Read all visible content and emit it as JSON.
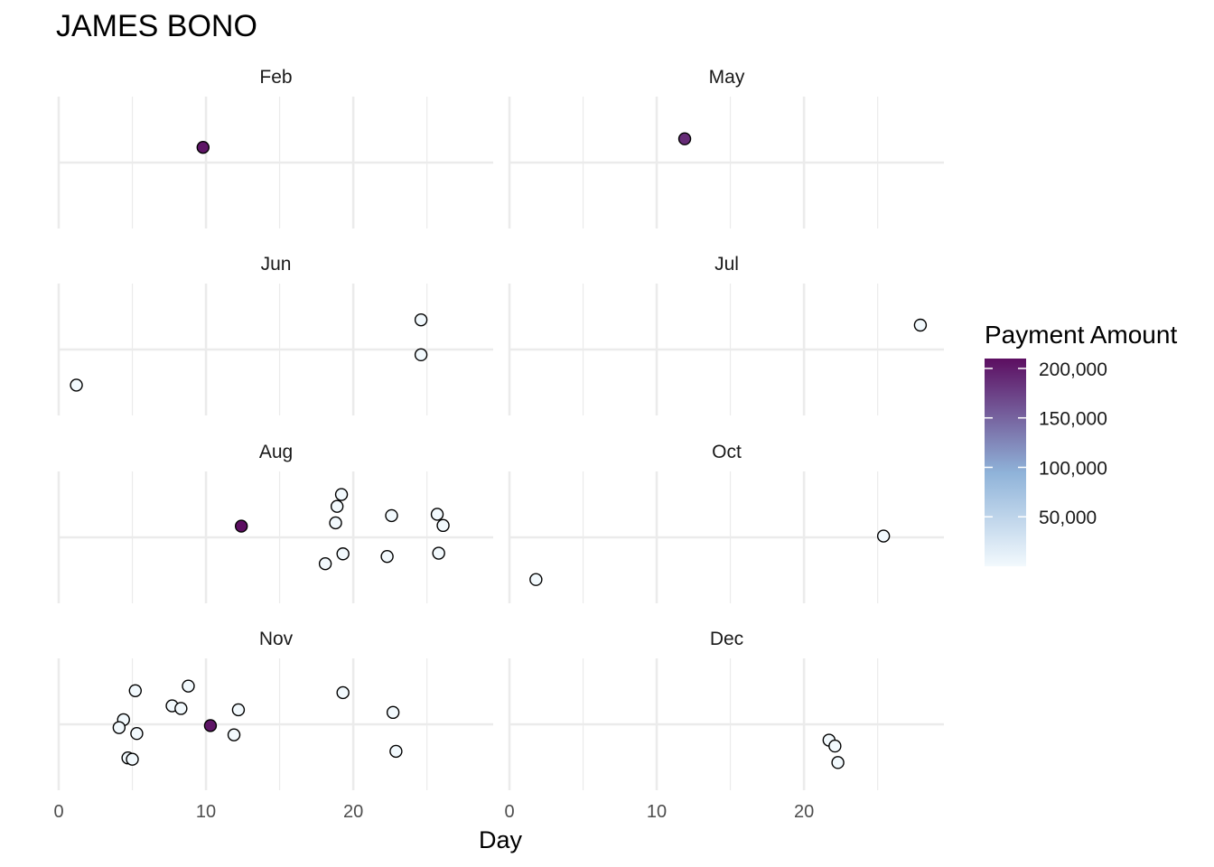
{
  "chart_data": {
    "type": "scatter",
    "title": "JAMES BONO",
    "xlabel": "Day",
    "ylabel": "",
    "xlim": [
      0,
      29.5
    ],
    "x_ticks": [
      0,
      10,
      20
    ],
    "x_tick_labels": [
      "0",
      "10",
      "20"
    ],
    "ylim": [
      -1,
      1
    ],
    "grid": true,
    "facets": [
      "Feb",
      "May",
      "Jun",
      "Jul",
      "Aug",
      "Oct",
      "Nov",
      "Dec"
    ],
    "colors": {
      "low": "#f2f9fd",
      "mid": "#8fb3d9",
      "high": "#5c0e61",
      "point_outline": "#000000",
      "grid": "#ebebeb"
    },
    "legend": {
      "title": "Payment Amount",
      "position": "right",
      "min": 0,
      "max": 210000,
      "breaks": [
        200000,
        150000,
        100000,
        50000
      ],
      "break_labels": [
        "200,000",
        "150,000",
        "100,000",
        "50,000"
      ]
    },
    "points": {
      "Feb": [
        {
          "x": 9.8,
          "y": 0.23,
          "amount": 205000
        }
      ],
      "May": [
        {
          "x": 11.9,
          "y": 0.36,
          "amount": 190000
        }
      ],
      "Jun": [
        {
          "x": 1.2,
          "y": -0.54,
          "amount": 300
        },
        {
          "x": 24.6,
          "y": 0.45,
          "amount": 300
        },
        {
          "x": 24.6,
          "y": -0.08,
          "amount": 300
        }
      ],
      "Jul": [
        {
          "x": 27.9,
          "y": 0.37,
          "amount": 300
        }
      ],
      "Aug": [
        {
          "x": 12.4,
          "y": 0.17,
          "amount": 210000
        },
        {
          "x": 19.2,
          "y": 0.65,
          "amount": 300
        },
        {
          "x": 18.9,
          "y": 0.47,
          "amount": 300
        },
        {
          "x": 18.8,
          "y": 0.22,
          "amount": 300
        },
        {
          "x": 22.6,
          "y": 0.33,
          "amount": 300
        },
        {
          "x": 25.7,
          "y": 0.35,
          "amount": 300
        },
        {
          "x": 26.1,
          "y": 0.18,
          "amount": 300
        },
        {
          "x": 19.3,
          "y": -0.25,
          "amount": 300
        },
        {
          "x": 18.1,
          "y": -0.4,
          "amount": 300
        },
        {
          "x": 22.3,
          "y": -0.29,
          "amount": 300
        },
        {
          "x": 25.8,
          "y": -0.24,
          "amount": 300
        }
      ],
      "Oct": [
        {
          "x": 25.4,
          "y": 0.02,
          "amount": 300
        },
        {
          "x": 1.8,
          "y": -0.64,
          "amount": 300
        }
      ],
      "Nov": [
        {
          "x": 5.2,
          "y": 0.51,
          "amount": 300
        },
        {
          "x": 8.8,
          "y": 0.58,
          "amount": 300
        },
        {
          "x": 7.7,
          "y": 0.28,
          "amount": 300
        },
        {
          "x": 8.3,
          "y": 0.24,
          "amount": 300
        },
        {
          "x": 12.2,
          "y": 0.22,
          "amount": 300
        },
        {
          "x": 19.3,
          "y": 0.48,
          "amount": 300
        },
        {
          "x": 22.7,
          "y": 0.18,
          "amount": 300
        },
        {
          "x": 4.4,
          "y": 0.07,
          "amount": 300
        },
        {
          "x": 4.1,
          "y": -0.05,
          "amount": 300
        },
        {
          "x": 5.3,
          "y": -0.14,
          "amount": 300
        },
        {
          "x": 10.3,
          "y": -0.02,
          "amount": 205000
        },
        {
          "x": 11.9,
          "y": -0.16,
          "amount": 300
        },
        {
          "x": 4.7,
          "y": -0.51,
          "amount": 300
        },
        {
          "x": 5.0,
          "y": -0.53,
          "amount": 300
        },
        {
          "x": 22.9,
          "y": -0.41,
          "amount": 300
        }
      ],
      "Dec": [
        {
          "x": 21.7,
          "y": -0.24,
          "amount": 300
        },
        {
          "x": 22.1,
          "y": -0.33,
          "amount": 300
        },
        {
          "x": 22.3,
          "y": -0.58,
          "amount": 300
        }
      ]
    }
  }
}
